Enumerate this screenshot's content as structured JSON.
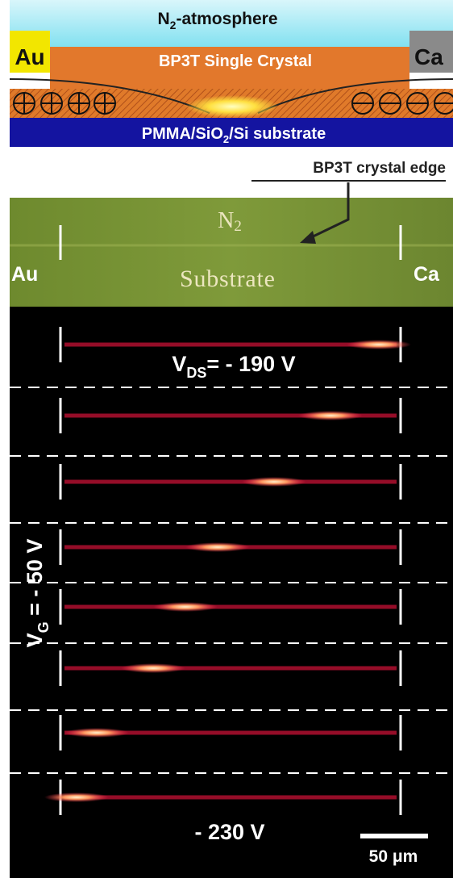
{
  "schematic": {
    "atmosphere": [
      "N",
      "2",
      "-atmosphere"
    ],
    "left_electrode": "Au",
    "right_electrode": "Ca",
    "crystal": "BP3T Single Crystal",
    "substrate": [
      "PMMA/SiO",
      "2",
      "/Si substrate"
    ]
  },
  "edge_annotation": "BP3T crystal edge",
  "photo": {
    "atmosphere": [
      "N",
      "2"
    ],
    "left_electrode": "Au",
    "substrate": "Substrate",
    "right_electrode": "Ca"
  },
  "emission_panels": {
    "top_label": [
      "V",
      "DS",
      "= - 190 V"
    ],
    "gate_label": [
      "V",
      "G",
      " = - 50 V"
    ],
    "bottom_label": "- 230 V",
    "scale_bar": "50 μm"
  }
}
